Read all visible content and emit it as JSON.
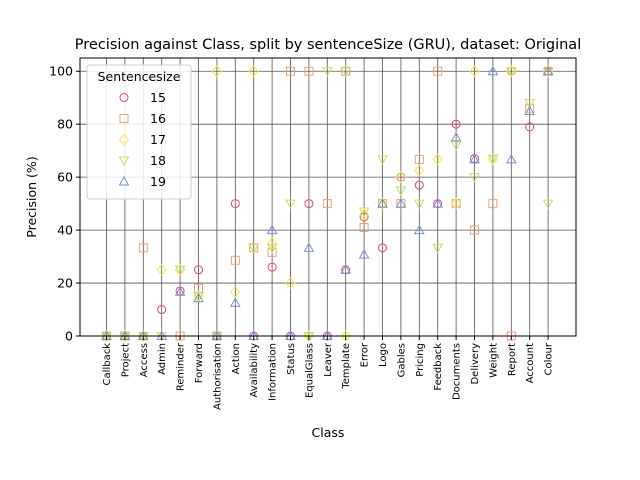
{
  "chart_data": {
    "type": "scatter",
    "title": "Precision against Class, split by sentenceSize (GRU), dataset: Original",
    "xlabel": "Class",
    "ylabel": "Precision (%)",
    "ylim": [
      0,
      105
    ],
    "yticks": [
      0,
      20,
      40,
      60,
      80,
      100
    ],
    "grid": "vertical lines at categories, horizontal lines at y ticks",
    "legend": {
      "title": "Sentencesize",
      "position": "top-left"
    },
    "categories": [
      "Callback",
      "Project",
      "Access",
      "Admin",
      "Reminder",
      "Forward",
      "Authorisation",
      "Action",
      "Availability",
      "Information",
      "Status",
      "EqualGlass",
      "Leaver",
      "Template",
      "Error",
      "Logo",
      "Gables",
      "Pricing",
      "Feedback",
      "Documents",
      "Delivery",
      "Weight",
      "Report",
      "Account",
      "Colour"
    ],
    "series": [
      {
        "name": "15",
        "marker": "circle",
        "color": "#e0457b",
        "values": [
          0,
          0,
          0,
          10,
          17,
          25,
          0,
          50,
          0,
          26,
          0,
          50,
          0,
          25,
          45,
          33.3,
          60,
          57,
          50,
          80,
          67,
          null,
          100,
          79,
          100
        ]
      },
      {
        "name": "16",
        "marker": "square",
        "color": "#f0a070",
        "values": [
          0,
          0,
          33.3,
          null,
          0,
          18,
          0,
          28.6,
          33.3,
          31.6,
          100,
          100,
          50,
          100,
          41,
          50,
          50,
          66.7,
          100,
          50,
          40,
          50,
          0,
          86,
          100
        ]
      },
      {
        "name": "17",
        "marker": "diamond",
        "color": "#f5e642",
        "values": [
          0,
          0,
          0,
          25,
          25,
          15,
          100,
          16.7,
          100,
          35,
          20,
          0,
          null,
          0,
          46,
          50,
          60,
          62.5,
          66.7,
          50,
          100,
          66.7,
          100,
          null,
          100
        ]
      },
      {
        "name": "18",
        "marker": "triangle-down",
        "color": "#c4e05a",
        "values": [
          0,
          0,
          0,
          0,
          25,
          15,
          0,
          null,
          33.3,
          33.3,
          50,
          0,
          100,
          100,
          47,
          66.7,
          55,
          50,
          33.3,
          72,
          60,
          67,
          100,
          88,
          50
        ]
      },
      {
        "name": "19",
        "marker": "triangle-up",
        "color": "#7b8fd4",
        "values": [
          0,
          0,
          0,
          0,
          16.7,
          14.3,
          0,
          12.5,
          0,
          40,
          0,
          33.3,
          0,
          25,
          30.8,
          50,
          50,
          40,
          50,
          75,
          66.7,
          100,
          66.7,
          85,
          100
        ]
      }
    ]
  }
}
